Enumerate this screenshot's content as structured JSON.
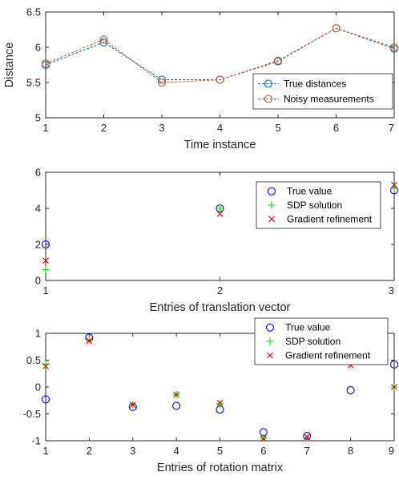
{
  "chart_data": [
    {
      "type": "line",
      "xlabel": "Time instance",
      "ylabel": "Distance",
      "xlim": [
        1,
        7
      ],
      "ylim": [
        5,
        6.5
      ],
      "x_ticks": [
        "1",
        "2",
        "3",
        "4",
        "5",
        "6",
        "7"
      ],
      "y_ticks": [
        "5",
        "5.5",
        "6",
        "6.5"
      ],
      "legend_position": "bottom-right",
      "grid": false,
      "x": [
        1,
        2,
        3,
        4,
        5,
        6,
        7
      ],
      "series": [
        {
          "name": "True distances",
          "values": [
            5.75,
            6.07,
            5.54,
            5.54,
            5.8,
            6.27,
            5.98
          ],
          "color": "#0072BD",
          "marker": "circle",
          "line": "dashed"
        },
        {
          "name": "Noisy measurements",
          "values": [
            5.77,
            6.11,
            5.5,
            5.54,
            5.81,
            6.27,
            6.0
          ],
          "color": "#D95319",
          "marker": "circle",
          "line": "dashed"
        }
      ]
    },
    {
      "type": "scatter",
      "xlabel": "Entries of translation vector",
      "ylabel": "",
      "xlim": [
        1,
        3
      ],
      "ylim": [
        0,
        6
      ],
      "x_ticks": [
        "1",
        "2",
        "3"
      ],
      "y_ticks": [
        "0",
        "2",
        "4",
        "6"
      ],
      "legend_position": "top-right",
      "grid": false,
      "x": [
        1,
        2,
        3
      ],
      "series": [
        {
          "name": "True value",
          "values": [
            2.0,
            4.0,
            5.0
          ],
          "color": "#0000FF",
          "marker": "circle"
        },
        {
          "name": "SDP solution",
          "values": [
            0.6,
            4.0,
            5.1
          ],
          "color": "#00DD00",
          "marker": "plus"
        },
        {
          "name": "Gradient refinement",
          "values": [
            1.1,
            3.7,
            5.3
          ],
          "color": "#DD0000",
          "marker": "x"
        }
      ]
    },
    {
      "type": "scatter",
      "xlabel": "Entries of rotation matrix",
      "ylabel": "",
      "xlim": [
        1,
        9
      ],
      "ylim": [
        -1,
        1
      ],
      "x_ticks": [
        "1",
        "2",
        "3",
        "4",
        "5",
        "6",
        "7",
        "8",
        "9"
      ],
      "y_ticks": [
        "-1",
        "-0.5",
        "0",
        "0.5",
        "1"
      ],
      "legend_position": "top-right",
      "grid": false,
      "x": [
        1,
        2,
        3,
        4,
        5,
        6,
        7,
        8,
        9
      ],
      "series": [
        {
          "name": "True value",
          "values": [
            -0.23,
            0.92,
            -0.37,
            -0.35,
            -0.42,
            -0.84,
            -0.91,
            -0.06,
            0.42
          ],
          "color": "#0000FF",
          "marker": "circle"
        },
        {
          "name": "SDP solution",
          "values": [
            0.42,
            0.87,
            -0.33,
            -0.14,
            -0.31,
            -0.95,
            -0.94,
            0.42,
            0.0
          ],
          "color": "#00DD00",
          "marker": "plus"
        },
        {
          "name": "Gradient refinement",
          "values": [
            0.39,
            0.86,
            -0.33,
            -0.14,
            -0.3,
            -0.96,
            -0.93,
            0.41,
            0.0
          ],
          "color": "#DD0000",
          "marker": "x"
        }
      ]
    }
  ]
}
